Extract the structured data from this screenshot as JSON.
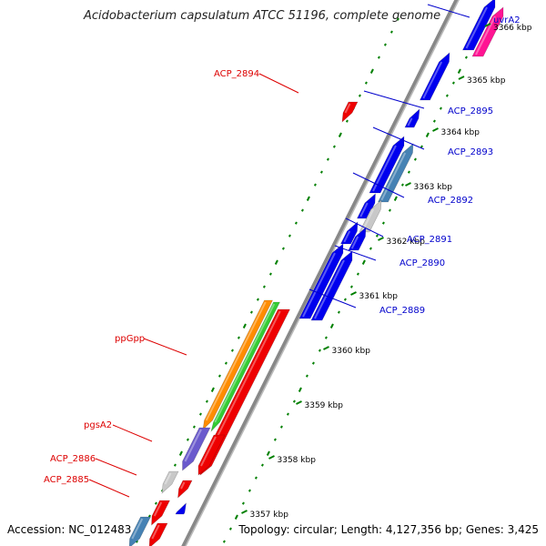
{
  "title": "Acidobacterium capsulatum ATCC 51196, complete genome",
  "footer": {
    "accession": "Accession: NC_012483",
    "summary": "Topology: circular; Length: 4,127,356 bp; Genes: 3,425"
  },
  "ticks": [
    "3357 kbp",
    "3358 kbp",
    "3359 kbp",
    "3360 kbp",
    "3361 kbp",
    "3362 kbp",
    "3363 kbp",
    "3364 kbp",
    "3365 kbp",
    "3366 kbp"
  ],
  "labels_right": [
    "uvrA2",
    "ACP_2895",
    "ACP_2893",
    "ACP_2892",
    "ACP_2891",
    "ACP_2890",
    "ACP_2889"
  ],
  "labels_left": [
    "ACP_2894",
    "ppGpp",
    "pgsA2",
    "ACP_2886",
    "ACP_2885"
  ],
  "colors": {
    "forward_strand_label": "#0000cc",
    "reverse_strand_label": "#dd0000",
    "forward_gene": "#0000ee",
    "reverse_gene": "#ee0000",
    "backbone": "#888888",
    "gc_track": "#008000",
    "orange_feature": "#ff8c00",
    "green_feature": "#33cc33",
    "purple_feature": "#6a5acd",
    "steel_feature": "#4682b4",
    "pink_feature": "#ff1493",
    "grey_feature": "#c8c8c8"
  }
}
